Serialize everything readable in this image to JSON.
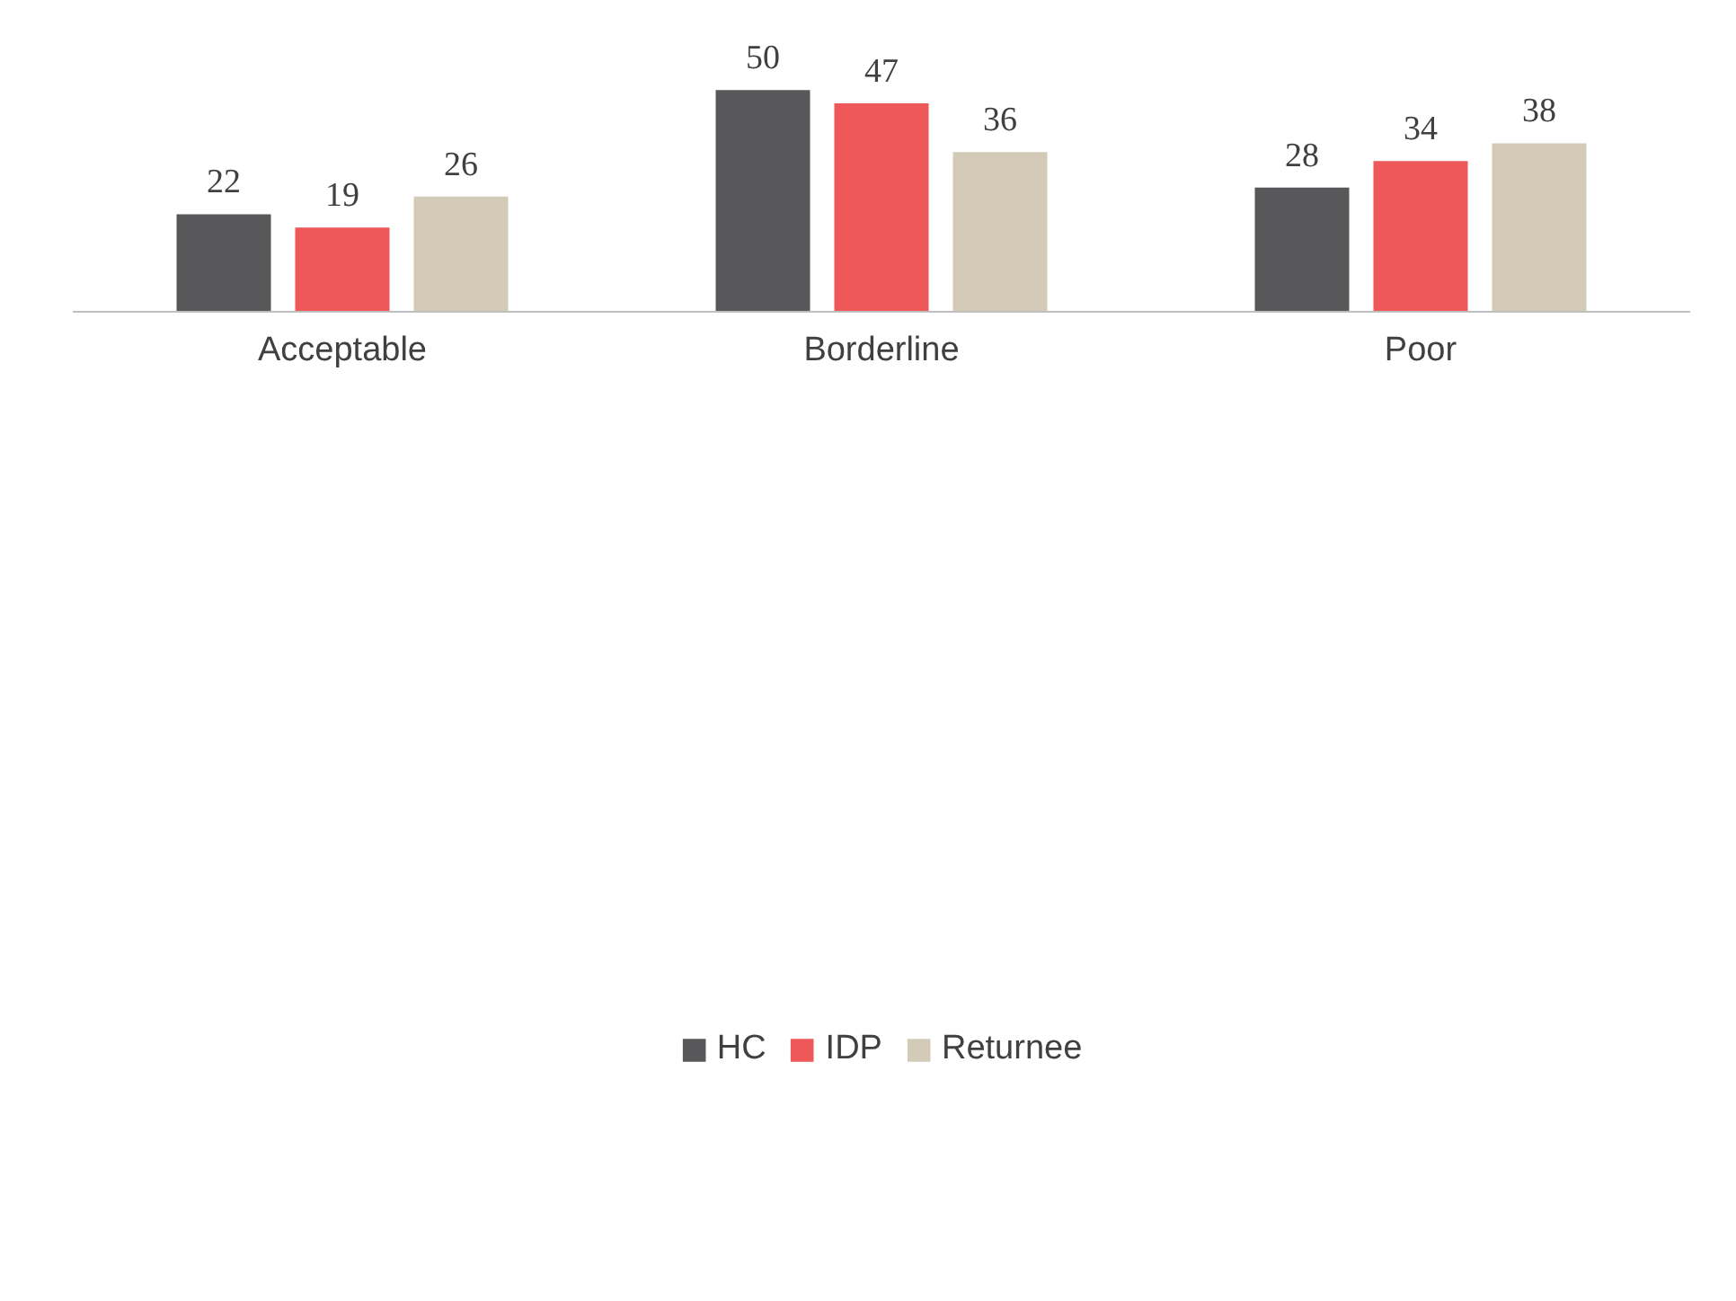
{
  "chart_data": {
    "type": "bar",
    "categories": [
      "Acceptable",
      "Borderline",
      "Poor"
    ],
    "series": [
      {
        "name": "HC",
        "color": "#58585a",
        "values": [
          22,
          50,
          28
        ]
      },
      {
        "name": "IDP",
        "color": "#ee5859",
        "values": [
          19,
          47,
          34
        ]
      },
      {
        "name": "Returnee",
        "color": "#d3cbb8",
        "values": [
          26,
          36,
          38
        ]
      }
    ],
    "data_labels": true,
    "legend": "bottom",
    "grid": false
  }
}
